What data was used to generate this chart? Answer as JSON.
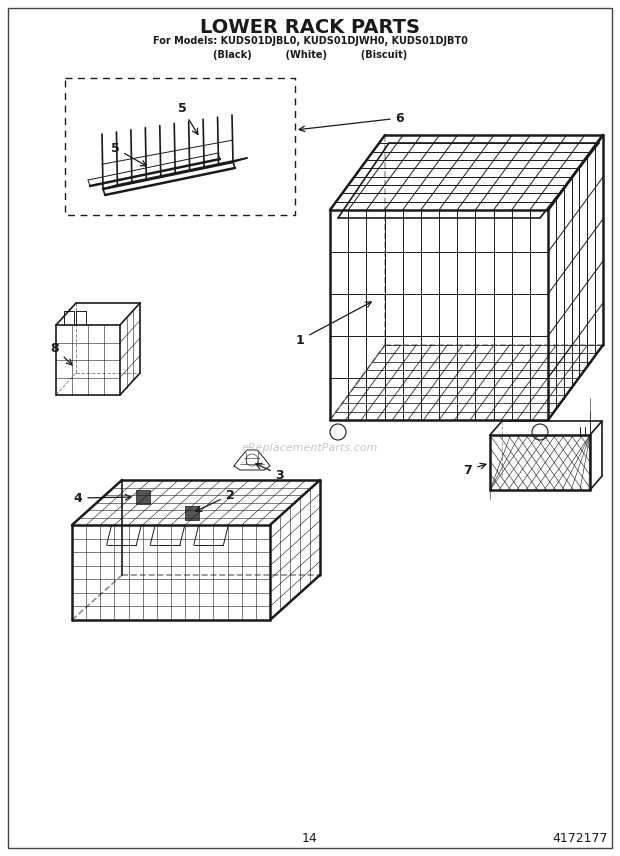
{
  "title_main": "LOWER RACK PARTS",
  "title_sub1": "For Models: KUDS01DJBL0, KUDS01DJWH0, KUDS01DJBT0",
  "title_sub2": "(Black)          (White)          (Biscuit)",
  "page_number": "14",
  "part_number": "4172177",
  "watermark": "eReplacementParts.com",
  "bg_color": "#ffffff",
  "line_color": "#1a1a1a"
}
